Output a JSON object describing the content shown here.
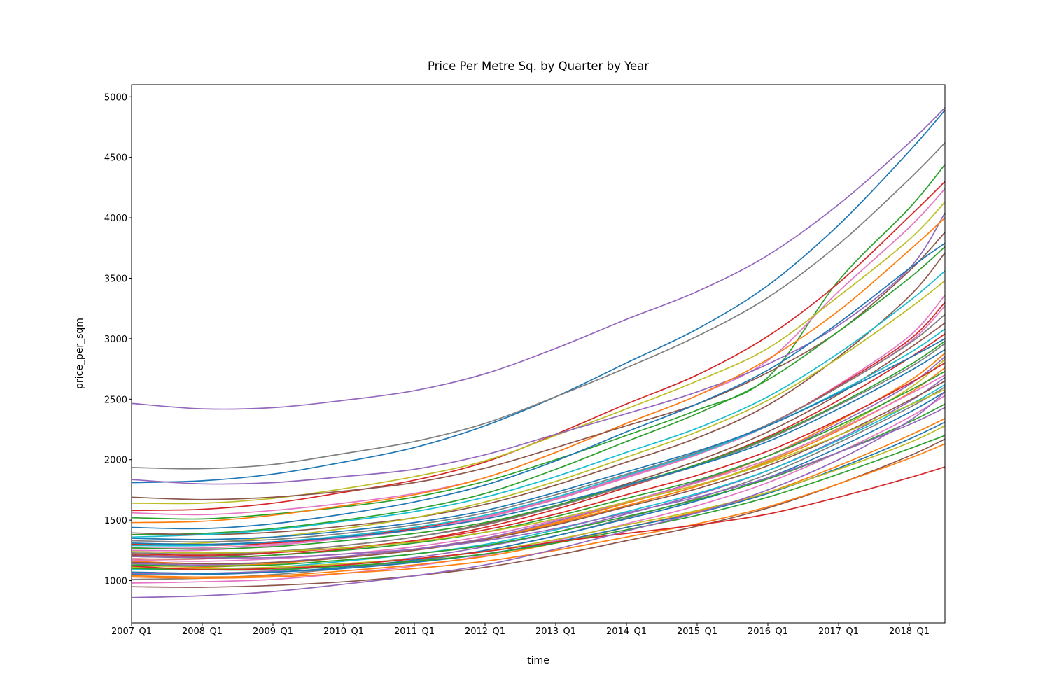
{
  "chart_data": {
    "type": "line",
    "title": "Price Per Metre Sq. by Quarter by Year",
    "xlabel": "time",
    "ylabel": "price_per_sqm",
    "x_tick_labels": [
      "2007_Q1",
      "2008_Q1",
      "2009_Q1",
      "2010_Q1",
      "2011_Q1",
      "2012_Q1",
      "2013_Q1",
      "2014_Q1",
      "2015_Q1",
      "2016_Q1",
      "2017_Q1",
      "2018_Q1"
    ],
    "y_ticks": [
      1000,
      1500,
      2000,
      2500,
      3000,
      3500,
      4000,
      4500,
      5000
    ],
    "ylim": [
      650,
      5100
    ],
    "x_anchor_labels": [
      "2007_Q1",
      "2008_Q1",
      "2009_Q1",
      "2010_Q1",
      "2011_Q1",
      "2012_Q1",
      "2013_Q1",
      "2014_Q1",
      "2015_Q1",
      "2016_Q1",
      "2017_Q1",
      "2018_Q1",
      "2018_Q2"
    ],
    "grid": false,
    "legend": "none",
    "palette": [
      "#1f77b4",
      "#ff7f0e",
      "#2ca02c",
      "#d62728",
      "#9467bd",
      "#8c564b",
      "#e377c2",
      "#7f7f7f",
      "#bcbd22",
      "#17becf"
    ],
    "series": [
      {
        "color": "#9467bd",
        "values": [
          2465,
          2420,
          2430,
          2490,
          2570,
          2710,
          2920,
          3160,
          3390,
          3690,
          4110,
          4620,
          4910
        ]
      },
      {
        "color": "#1f77b4",
        "values": [
          1810,
          1825,
          1880,
          1980,
          2100,
          2280,
          2520,
          2800,
          3080,
          3440,
          3940,
          4550,
          4890
        ]
      },
      {
        "color": "#7f7f7f",
        "values": [
          1935,
          1925,
          1960,
          2050,
          2150,
          2300,
          2520,
          2760,
          3020,
          3340,
          3780,
          4320,
          4620
        ]
      },
      {
        "color": "#2ca02c",
        "values": [
          1520,
          1510,
          1550,
          1610,
          1690,
          1820,
          2000,
          2200,
          2410,
          2680,
          3480,
          4080,
          4440
        ]
      },
      {
        "color": "#d62728",
        "values": [
          1580,
          1590,
          1640,
          1730,
          1830,
          1980,
          2210,
          2460,
          2700,
          3020,
          3460,
          4010,
          4300
        ]
      },
      {
        "color": "#e377c2",
        "values": [
          1560,
          1545,
          1580,
          1640,
          1720,
          1850,
          2060,
          2300,
          2530,
          2820,
          3390,
          3920,
          4240
        ]
      },
      {
        "color": "#bcbd22",
        "values": [
          1640,
          1640,
          1680,
          1760,
          1860,
          1990,
          2200,
          2420,
          2650,
          2920,
          3350,
          3820,
          4130
        ]
      },
      {
        "color": "#9467bd",
        "values": [
          1835,
          1800,
          1810,
          1860,
          1920,
          2040,
          2210,
          2380,
          2560,
          2790,
          3110,
          3580,
          4040
        ]
      },
      {
        "color": "#ff7f0e",
        "values": [
          1480,
          1490,
          1540,
          1620,
          1710,
          1850,
          2060,
          2300,
          2530,
          2830,
          3230,
          3730,
          4000
        ]
      },
      {
        "color": "#8c564b",
        "values": [
          1690,
          1670,
          1690,
          1740,
          1810,
          1930,
          2100,
          2280,
          2460,
          2720,
          3060,
          3560,
          3880
        ]
      },
      {
        "color": "#1f77b4",
        "values": [
          1440,
          1430,
          1470,
          1550,
          1650,
          1790,
          1990,
          2230,
          2460,
          2740,
          3130,
          3580,
          3790
        ]
      },
      {
        "color": "#2ca02c",
        "values": [
          1380,
          1390,
          1430,
          1500,
          1590,
          1720,
          1920,
          2150,
          2380,
          2660,
          3060,
          3500,
          3760
        ]
      },
      {
        "color": "#8c564b",
        "values": [
          1395,
          1380,
          1400,
          1450,
          1520,
          1630,
          1790,
          1980,
          2180,
          2450,
          2850,
          3350,
          3710
        ]
      },
      {
        "color": "#17becf",
        "values": [
          1360,
          1380,
          1420,
          1490,
          1570,
          1690,
          1860,
          2060,
          2260,
          2520,
          2880,
          3310,
          3560
        ]
      },
      {
        "color": "#bcbd22",
        "values": [
          1300,
          1310,
          1360,
          1430,
          1520,
          1650,
          1820,
          2020,
          2230,
          2490,
          2840,
          3250,
          3480
        ]
      },
      {
        "color": "#e377c2",
        "values": [
          1270,
          1270,
          1300,
          1350,
          1420,
          1520,
          1670,
          1850,
          2040,
          2280,
          2620,
          3020,
          3360
        ]
      },
      {
        "color": "#d62728",
        "values": [
          1300,
          1290,
          1310,
          1360,
          1430,
          1530,
          1680,
          1860,
          2050,
          2290,
          2610,
          2990,
          3300
        ]
      },
      {
        "color": "#e377c2",
        "values": [
          1250,
          1250,
          1290,
          1350,
          1420,
          1530,
          1680,
          1860,
          2050,
          2290,
          2600,
          2970,
          3270
        ]
      },
      {
        "color": "#7f7f7f",
        "values": [
          1330,
          1320,
          1340,
          1390,
          1460,
          1560,
          1710,
          1880,
          2060,
          2290,
          2600,
          2960,
          3200
        ]
      },
      {
        "color": "#8c564b",
        "values": [
          1210,
          1200,
          1230,
          1290,
          1360,
          1470,
          1620,
          1800,
          1990,
          2230,
          2540,
          2920,
          3130
        ]
      },
      {
        "color": "#17becf",
        "values": [
          1290,
          1290,
          1320,
          1370,
          1440,
          1540,
          1690,
          1870,
          2050,
          2280,
          2560,
          2880,
          3080
        ]
      },
      {
        "color": "#d62728",
        "values": [
          1180,
          1180,
          1210,
          1260,
          1330,
          1440,
          1590,
          1770,
          1960,
          2190,
          2490,
          2840,
          3040
        ]
      },
      {
        "color": "#1f77b4",
        "values": [
          1350,
          1340,
          1360,
          1410,
          1480,
          1580,
          1730,
          1900,
          2070,
          2280,
          2550,
          2840,
          3000
        ]
      },
      {
        "color": "#2ca02c",
        "values": [
          1270,
          1260,
          1280,
          1330,
          1390,
          1480,
          1620,
          1790,
          1960,
          2180,
          2460,
          2780,
          2980
        ]
      },
      {
        "color": "#7f7f7f",
        "values": [
          1230,
          1220,
          1240,
          1290,
          1360,
          1460,
          1610,
          1780,
          1950,
          2170,
          2450,
          2760,
          2960
        ]
      },
      {
        "color": "#1f77b4",
        "values": [
          1310,
          1300,
          1320,
          1360,
          1420,
          1510,
          1640,
          1790,
          1950,
          2150,
          2420,
          2730,
          2910
        ]
      },
      {
        "color": "#ff7f0e",
        "values": [
          1160,
          1140,
          1150,
          1200,
          1260,
          1350,
          1480,
          1640,
          1810,
          2030,
          2320,
          2650,
          2880
        ]
      },
      {
        "color": "#9467bd",
        "values": [
          1140,
          1130,
          1150,
          1200,
          1260,
          1350,
          1490,
          1650,
          1820,
          2030,
          2300,
          2620,
          2850
        ]
      },
      {
        "color": "#bcbd22",
        "values": [
          1120,
          1120,
          1140,
          1190,
          1250,
          1340,
          1470,
          1620,
          1780,
          1990,
          2260,
          2590,
          2830
        ]
      },
      {
        "color": "#d62728",
        "values": [
          1220,
          1210,
          1230,
          1270,
          1330,
          1420,
          1550,
          1710,
          1870,
          2070,
          2330,
          2630,
          2800
        ]
      },
      {
        "color": "#ff7f0e",
        "values": [
          1100,
          1110,
          1140,
          1190,
          1250,
          1340,
          1470,
          1620,
          1780,
          1980,
          2240,
          2550,
          2760
        ]
      },
      {
        "color": "#2ca02c",
        "values": [
          1200,
          1190,
          1210,
          1250,
          1310,
          1400,
          1530,
          1680,
          1830,
          2030,
          2280,
          2570,
          2730
        ]
      },
      {
        "color": "#e377c2",
        "values": [
          1170,
          1160,
          1180,
          1220,
          1280,
          1370,
          1500,
          1650,
          1810,
          2000,
          2250,
          2540,
          2700
        ]
      },
      {
        "color": "#9467bd",
        "values": [
          1060,
          1060,
          1080,
          1130,
          1190,
          1280,
          1400,
          1550,
          1710,
          1910,
          2170,
          2480,
          2680
        ]
      },
      {
        "color": "#8c564b",
        "values": [
          1150,
          1140,
          1150,
          1190,
          1250,
          1340,
          1460,
          1610,
          1760,
          1950,
          2200,
          2490,
          2650
        ]
      },
      {
        "color": "#17becf",
        "values": [
          1090,
          1090,
          1110,
          1160,
          1220,
          1300,
          1420,
          1570,
          1720,
          1910,
          2160,
          2450,
          2620
        ]
      },
      {
        "color": "#7f7f7f",
        "values": [
          1010,
          1020,
          1050,
          1100,
          1160,
          1250,
          1370,
          1520,
          1680,
          1880,
          2140,
          2430,
          2600
        ]
      },
      {
        "color": "#bcbd22",
        "values": [
          1240,
          1230,
          1240,
          1270,
          1320,
          1400,
          1510,
          1650,
          1790,
          1970,
          2200,
          2450,
          2580
        ]
      },
      {
        "color": "#1f77b4",
        "values": [
          1050,
          1050,
          1070,
          1110,
          1170,
          1250,
          1370,
          1510,
          1660,
          1850,
          2100,
          2390,
          2560
        ]
      },
      {
        "color": "#e377c2",
        "values": [
          980,
          990,
          1010,
          1060,
          1120,
          1210,
          1330,
          1470,
          1620,
          1810,
          2060,
          2350,
          2530
        ]
      },
      {
        "color": "#2ca02c",
        "values": [
          1130,
          1120,
          1130,
          1170,
          1220,
          1290,
          1400,
          1530,
          1670,
          1840,
          2060,
          2310,
          2460
        ]
      },
      {
        "color": "#9467bd",
        "values": [
          1200,
          1190,
          1190,
          1220,
          1260,
          1330,
          1430,
          1560,
          1690,
          1850,
          2060,
          2290,
          2430
        ]
      },
      {
        "color": "#ff7f0e",
        "values": [
          1040,
          1030,
          1040,
          1080,
          1130,
          1200,
          1310,
          1440,
          1570,
          1730,
          1950,
          2200,
          2340
        ]
      },
      {
        "color": "#1f77b4",
        "values": [
          1070,
          1060,
          1070,
          1100,
          1150,
          1220,
          1320,
          1440,
          1560,
          1720,
          1930,
          2170,
          2310
        ]
      },
      {
        "color": "#bcbd22",
        "values": [
          1110,
          1100,
          1110,
          1140,
          1180,
          1240,
          1340,
          1460,
          1580,
          1730,
          1920,
          2140,
          2280
        ]
      },
      {
        "color": "#2ca02c",
        "values": [
          1100,
          1090,
          1090,
          1120,
          1160,
          1220,
          1310,
          1420,
          1540,
          1690,
          1880,
          2090,
          2200
        ]
      },
      {
        "color": "#8c564b",
        "values": [
          950,
          945,
          960,
          990,
          1040,
          1110,
          1210,
          1330,
          1450,
          1600,
          1800,
          2030,
          2170
        ]
      },
      {
        "color": "#ff7f0e",
        "values": [
          1030,
          1020,
          1030,
          1060,
          1100,
          1160,
          1250,
          1360,
          1470,
          1610,
          1800,
          2010,
          2130
        ]
      },
      {
        "color": "#d62728",
        "values": [
          1120,
          1090,
          1100,
          1130,
          1180,
          1240,
          1320,
          1390,
          1460,
          1550,
          1690,
          1850,
          1940
        ]
      },
      {
        "color": "#9467bd",
        "values": [
          860,
          875,
          910,
          970,
          1040,
          1130,
          1260,
          1410,
          1560,
          1750,
          2000,
          2320,
          2560
        ]
      }
    ]
  }
}
